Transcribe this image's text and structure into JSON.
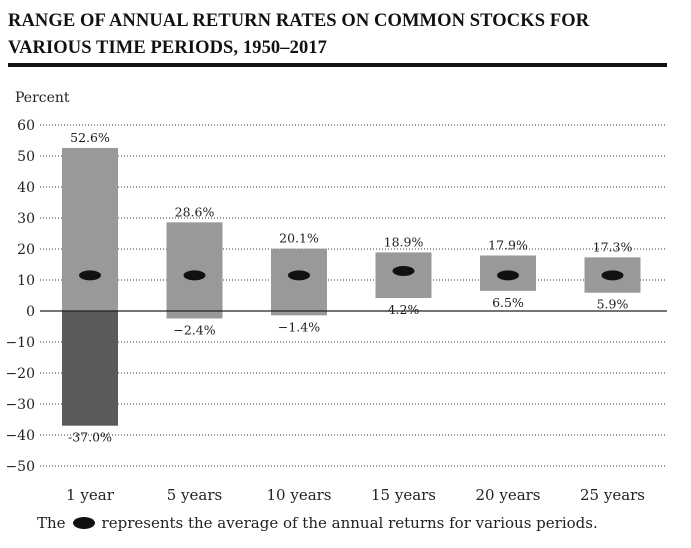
{
  "title_line1": "RANGE OF ANNUAL RETURN RATES ON COMMON STOCKS FOR",
  "title_line2": "VARIOUS TIME PERIODS, 1950–2017",
  "footnote_before": "The",
  "footnote_after": "represents the average of the annual returns for various periods.",
  "chart_data": {
    "type": "bar",
    "ylabel": "Percent",
    "ylim": [
      -50,
      60
    ],
    "yticks": [
      {
        "value": 60,
        "label": "60"
      },
      {
        "value": 50,
        "label": "50"
      },
      {
        "value": 40,
        "label": "40"
      },
      {
        "value": 30,
        "label": "30"
      },
      {
        "value": 20,
        "label": "20"
      },
      {
        "value": 10,
        "label": "10"
      },
      {
        "value": 0,
        "label": "0"
      },
      {
        "value": -10,
        "label": "−10"
      },
      {
        "value": -20,
        "label": "−20"
      },
      {
        "value": -30,
        "label": "−30"
      },
      {
        "value": -40,
        "label": "−40"
      },
      {
        "value": -50,
        "label": "−50"
      }
    ],
    "grid": true,
    "categories": [
      "1 year",
      "5 years",
      "10 years",
      "15 years",
      "20 years",
      "25 years"
    ],
    "high": [
      52.6,
      28.6,
      20.1,
      18.9,
      17.9,
      17.3
    ],
    "low": [
      -37.0,
      -2.4,
      -1.4,
      4.2,
      6.5,
      5.9
    ],
    "average": [
      11.5,
      11.5,
      11.5,
      12.9,
      11.5,
      11.5
    ],
    "high_labels": [
      "52.6%",
      "28.6%",
      "20.1%",
      "18.9%",
      "17.9%",
      "17.3%"
    ],
    "low_labels": [
      "-37.0%",
      "−2.4%",
      "−1.4%",
      "4.2%",
      "6.5%",
      "5.9%"
    ],
    "colors": {
      "positive": "#999999",
      "negative": "#5a5a5a",
      "marker": "#111111",
      "zero_line": "#222222",
      "grid": "#333333"
    }
  }
}
